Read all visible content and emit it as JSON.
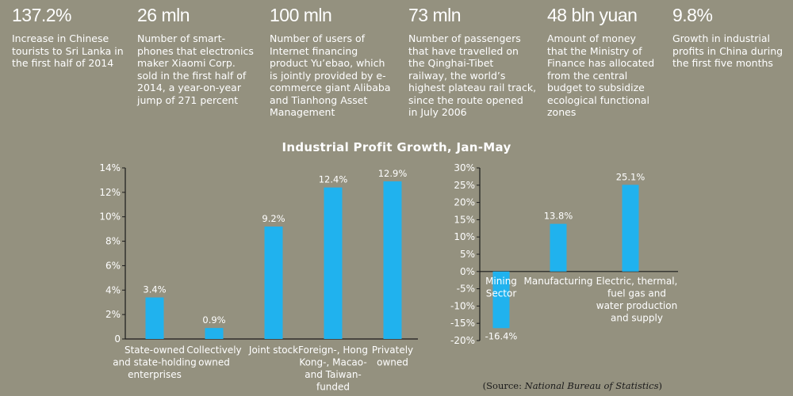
{
  "stats": [
    {
      "value": "137.2%",
      "desc": [
        "Increase in Chinese",
        "tourists to Sri Lanka in",
        "the first half of 2014"
      ]
    },
    {
      "value": "26 mln",
      "desc": [
        "Number of smart-",
        "phones that electronics",
        "maker Xiaomi Corp.",
        "sold in the first half of",
        "2014, a year-on-year",
        "jump of 271 percent"
      ]
    },
    {
      "value": "100 mln",
      "desc": [
        "Number of users of",
        "Internet financing",
        "product Yu’ebao, which",
        "is jointly provided by e-",
        "commerce giant Alibaba",
        "and Tianhong Asset",
        "Management"
      ]
    },
    {
      "value": "73 mln",
      "desc": [
        "Number of passengers",
        "that have travelled on",
        "the Qinghai-Tibet",
        "railway, the world’s",
        "highest plateau rail track,",
        "since the route opened",
        "in July 2006"
      ]
    },
    {
      "value": "48 bln yuan",
      "desc": [
        "Amount of money",
        "that the Ministry of",
        "Finance has allocated",
        "from the central",
        "budget to subsidize",
        "ecological functional",
        "zones"
      ]
    },
    {
      "value": "9.8%",
      "desc": [
        "Growth in industrial",
        "profits in China during",
        "the first five months"
      ]
    }
  ],
  "chart_title": "Industrial Profit Growth, Jan-May",
  "colors": {
    "background": "#94917f",
    "bar": "#20b2ee",
    "text": "#ffffff",
    "axis": "#1a1a1a"
  },
  "chart_data": [
    {
      "type": "bar",
      "title": "Industrial Profit Growth, Jan-May",
      "categories": [
        [
          "State-owned",
          "and state-holding",
          "enterprises"
        ],
        [
          "Collectively",
          "owned"
        ],
        [
          "Joint stock"
        ],
        [
          "Foreign-, Hong",
          "Kong-, Macao-",
          "and Taiwan-",
          "funded"
        ],
        [
          "Privately",
          "owned"
        ]
      ],
      "values": [
        3.4,
        0.9,
        9.2,
        12.4,
        12.9
      ],
      "value_labels": [
        "3.4%",
        "0.9%",
        "9.2%",
        "12.4%",
        "12.9%"
      ],
      "ylim": [
        0,
        14
      ],
      "yticks": [
        0,
        2,
        4,
        6,
        8,
        10,
        12,
        14
      ],
      "ytick_labels": [
        "0",
        "2%",
        "4%",
        "6%",
        "8%",
        "10%",
        "12%",
        "14%"
      ],
      "grid": false
    },
    {
      "type": "bar",
      "categories": [
        [
          "Mining",
          "Sector"
        ],
        [
          "Manufacturing"
        ],
        [
          "Electric, thermal,",
          "fuel gas and",
          "water production",
          "and supply"
        ]
      ],
      "values": [
        -16.4,
        13.8,
        25.1
      ],
      "value_labels": [
        "-16.4%",
        "13.8%",
        "25.1%"
      ],
      "ylim": [
        -20,
        30
      ],
      "yticks": [
        -20,
        -15,
        -10,
        -5,
        0,
        5,
        10,
        15,
        20,
        25,
        30
      ],
      "ytick_labels": [
        "-20%",
        "-15%",
        "-10%",
        "-5%",
        "0%",
        "5%",
        "10%",
        "15%",
        "20%",
        "25%",
        "30%"
      ],
      "grid": false
    }
  ],
  "source": {
    "prefix": "(Source: ",
    "name": "National Bureau of Statistics",
    "suffix": ")"
  }
}
